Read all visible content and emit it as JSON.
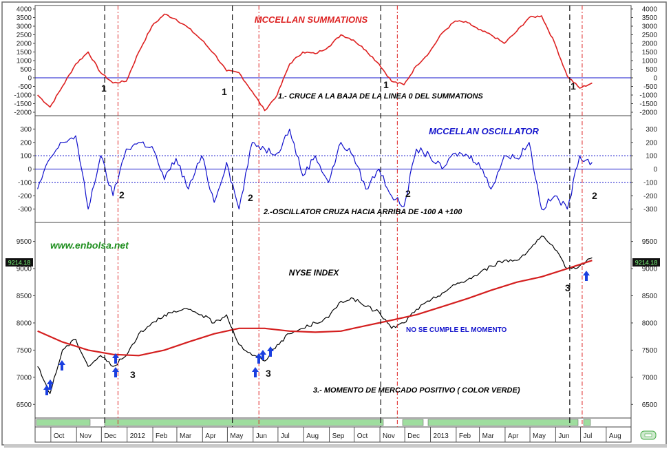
{
  "watermark": "www.enbolsa.net",
  "last_price_label": "9214.18",
  "colors": {
    "summation_line": "#dd1f1f",
    "oscillator_line": "#1010cc",
    "price_line": "#000000",
    "moving_average": "#d41f1f",
    "signal_arrow": "#1a3fe0",
    "title_red": "#dd2222",
    "title_blue": "#1515cc",
    "watermark_green": "#1f8f1f",
    "momentum_band": "#9edd9e"
  },
  "x_axis": {
    "ticks": [
      "Oct",
      "Nov",
      "Dec",
      "2012",
      "Feb",
      "Mar",
      "Apr",
      "May",
      "Jun",
      "Jul",
      "Aug",
      "Sep",
      "Oct",
      "Nov",
      "Dec",
      "2013",
      "Feb",
      "Mar",
      "Apr",
      "May",
      "Jun",
      "Jul",
      "Aug"
    ]
  },
  "chart_data": [
    {
      "type": "line",
      "title": "MCCELLAN SUMMATIONS",
      "ylim": [
        -2200,
        4200
      ],
      "y_ticks": [
        4000,
        3500,
        3000,
        2500,
        2000,
        1500,
        1000,
        500,
        0,
        -500,
        -1000,
        -1500,
        -2000
      ],
      "zero_line": 0,
      "series": [
        {
          "x": [
            "2011-09-15",
            "2011-09-30",
            "2011-10-15",
            "2011-10-31",
            "2011-11-15",
            "2011-11-30",
            "2011-12-15",
            "2011-12-31",
            "2012-01-15",
            "2012-01-31",
            "2012-02-15",
            "2012-02-29",
            "2012-03-15",
            "2012-03-31",
            "2012-04-15",
            "2012-04-30",
            "2012-05-15",
            "2012-05-31",
            "2012-06-15",
            "2012-06-30",
            "2012-07-15",
            "2012-07-31",
            "2012-08-15",
            "2012-08-31",
            "2012-09-15",
            "2012-09-30",
            "2012-10-15",
            "2012-10-31",
            "2012-11-15",
            "2012-11-30",
            "2012-12-15",
            "2012-12-31",
            "2013-01-15",
            "2013-01-31",
            "2013-02-15",
            "2013-02-28",
            "2013-03-15",
            "2013-03-31",
            "2013-04-15",
            "2013-04-30",
            "2013-05-15",
            "2013-05-31",
            "2013-06-15",
            "2013-06-30",
            "2013-07-15"
          ],
          "values": [
            -1000,
            -1700,
            -500,
            800,
            1500,
            300,
            -300,
            -200,
            1500,
            3000,
            3700,
            3400,
            2900,
            2200,
            1400,
            400,
            300,
            -800,
            -1900,
            -1000,
            800,
            1500,
            1400,
            1800,
            2500,
            2200,
            1600,
            800,
            -200,
            -400,
            700,
            1500,
            2600,
            3300,
            3200,
            2800,
            2500,
            2000,
            2700,
            3500,
            3600,
            2000,
            100,
            -600,
            -300
          ]
        }
      ],
      "annotations": [
        "1",
        "1",
        "1",
        "1",
        "1.- CRUCE A LA BAJA DE LA LINEA 0 DEL SUMMATIONS"
      ]
    },
    {
      "type": "line",
      "title": "MCCELLAN OSCILLATOR",
      "ylim": [
        -400,
        400
      ],
      "y_ticks": [
        300,
        200,
        100,
        0,
        -100,
        -200,
        -300
      ],
      "reference_lines": [
        100,
        0,
        -100
      ],
      "series": [
        {
          "x": [
            "2011-09-15",
            "2011-09-30",
            "2011-10-15",
            "2011-10-31",
            "2011-11-15",
            "2011-11-30",
            "2011-12-15",
            "2011-12-31",
            "2012-01-15",
            "2012-01-31",
            "2012-02-15",
            "2012-02-29",
            "2012-03-15",
            "2012-03-31",
            "2012-04-15",
            "2012-04-30",
            "2012-05-15",
            "2012-05-31",
            "2012-06-15",
            "2012-06-30",
            "2012-07-15",
            "2012-07-31",
            "2012-08-15",
            "2012-08-31",
            "2012-09-15",
            "2012-09-30",
            "2012-10-15",
            "2012-10-31",
            "2012-11-15",
            "2012-11-30",
            "2012-12-15",
            "2012-12-31",
            "2013-01-15",
            "2013-01-31",
            "2013-02-15",
            "2013-02-28",
            "2013-03-15",
            "2013-03-31",
            "2013-04-15",
            "2013-04-30",
            "2013-05-15",
            "2013-05-31",
            "2013-06-15",
            "2013-06-30",
            "2013-07-15"
          ],
          "values": [
            -150,
            80,
            200,
            250,
            -300,
            100,
            -200,
            150,
            200,
            170,
            -80,
            80,
            -150,
            100,
            -250,
            50,
            -300,
            200,
            150,
            120,
            300,
            -50,
            100,
            -100,
            200,
            100,
            -150,
            0,
            -200,
            -280,
            150,
            100,
            0,
            120,
            100,
            50,
            -150,
            100,
            80,
            200,
            -300,
            -200,
            -300,
            100,
            50
          ]
        }
      ],
      "annotations": [
        "2",
        "2",
        "2",
        "2",
        "2.-OSCILLATOR CRUZA HACIA ARRIBA DE -100 A +100"
      ]
    },
    {
      "type": "line",
      "title": "NYSE INDEX",
      "ylim": [
        6250,
        9850
      ],
      "y_ticks": [
        9500,
        9000,
        8500,
        8000,
        7500,
        7000,
        6500
      ],
      "last_value": 9214.18,
      "series": [
        {
          "x": [
            "2011-09-15",
            "2011-09-30",
            "2011-10-15",
            "2011-10-31",
            "2011-11-15",
            "2011-11-30",
            "2011-12-15",
            "2011-12-31",
            "2012-01-15",
            "2012-01-31",
            "2012-02-15",
            "2012-02-29",
            "2012-03-15",
            "2012-03-31",
            "2012-04-15",
            "2012-04-30",
            "2012-05-15",
            "2012-05-31",
            "2012-06-15",
            "2012-06-30",
            "2012-07-15",
            "2012-07-31",
            "2012-08-15",
            "2012-08-31",
            "2012-09-15",
            "2012-09-30",
            "2012-10-15",
            "2012-10-31",
            "2012-11-15",
            "2012-11-30",
            "2012-12-15",
            "2012-12-31",
            "2013-01-15",
            "2013-01-31",
            "2013-02-15",
            "2013-02-28",
            "2013-03-15",
            "2013-03-31",
            "2013-04-15",
            "2013-04-30",
            "2013-05-15",
            "2013-05-31",
            "2013-06-15",
            "2013-06-30",
            "2013-07-15"
          ],
          "values": [
            7200,
            6700,
            7500,
            7700,
            7200,
            7400,
            7200,
            7400,
            7800,
            8000,
            8150,
            8200,
            8250,
            8150,
            8000,
            8150,
            7600,
            7400,
            7300,
            7600,
            7800,
            7900,
            8000,
            8100,
            8400,
            8450,
            8300,
            8200,
            7900,
            8000,
            8250,
            8400,
            8550,
            8700,
            8800,
            8900,
            9050,
            9150,
            9150,
            9350,
            9600,
            9350,
            9000,
            9050,
            9200
          ]
        },
        {
          "x": [
            "2011-09-15",
            "2011-10-15",
            "2011-11-15",
            "2011-12-15",
            "2012-01-15",
            "2012-02-15",
            "2012-03-15",
            "2012-04-15",
            "2012-05-15",
            "2012-06-15",
            "2012-07-15",
            "2012-08-15",
            "2012-09-15",
            "2012-10-15",
            "2012-11-15",
            "2012-12-15",
            "2013-01-15",
            "2013-02-15",
            "2013-03-15",
            "2013-04-15",
            "2013-05-15",
            "2013-06-15",
            "2013-07-15"
          ],
          "values": [
            7850,
            7650,
            7500,
            7420,
            7400,
            7500,
            7650,
            7800,
            7900,
            7900,
            7850,
            7830,
            7850,
            7950,
            8050,
            8150,
            8300,
            8450,
            8600,
            8750,
            8850,
            9000,
            9150
          ]
        }
      ],
      "annotations": [
        "NO SE CUMPLE EL MOMENTO",
        "3",
        "3",
        "3",
        "3.- MOMENTO DE MERCADO POSITIVO ( COLOR VERDE)"
      ]
    }
  ]
}
